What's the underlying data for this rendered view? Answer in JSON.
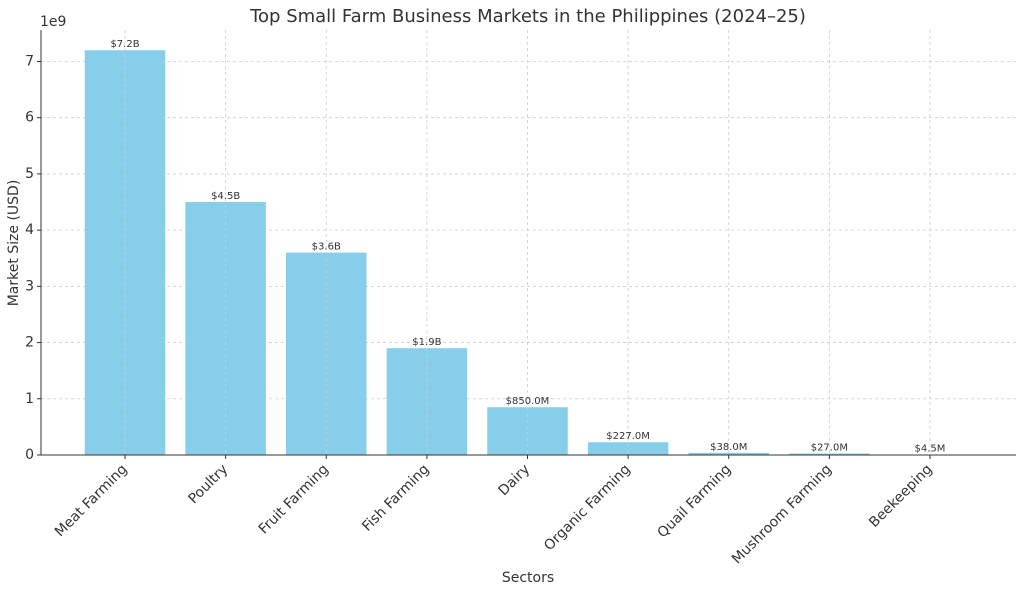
{
  "chart_data": {
    "type": "bar",
    "title": "Top Small Farm Business Markets in the Philippines (2024–25)",
    "x_label": "Sectors",
    "y_label": "Market Size (USD)",
    "y_offset_label": "1e9",
    "categories": [
      "Meat Farming",
      "Poultry",
      "Fruit Farming",
      "Fish Farming",
      "Dairy",
      "Organic Farming",
      "Quail Farming",
      "Mushroom Farming",
      "Beekeeping"
    ],
    "values": [
      7200000000,
      4500000000,
      3600000000,
      1900000000,
      850000000,
      227000000,
      38000000,
      27000000,
      4500000
    ],
    "value_labels": [
      "$7.2B",
      "$4.5B",
      "$3.6B",
      "$1.9B",
      "$850.0M",
      "$227.0M",
      "$38.0M",
      "$27.0M",
      "$4.5M"
    ],
    "color": "#87ceeb",
    "ylim": [
      0,
      7560000000
    ],
    "yticks": [
      0,
      {
        "value": 1000000000,
        "label": "1"
      },
      {
        "value": 2000000000,
        "label": "2"
      },
      {
        "value": 3000000000,
        "label": "3"
      },
      {
        "value": 4000000000,
        "label": "4"
      },
      {
        "value": 5000000000,
        "label": "5"
      },
      {
        "value": 6000000000,
        "label": "6"
      },
      {
        "value": 7000000000,
        "label": "7"
      }
    ],
    "grid": true
  }
}
